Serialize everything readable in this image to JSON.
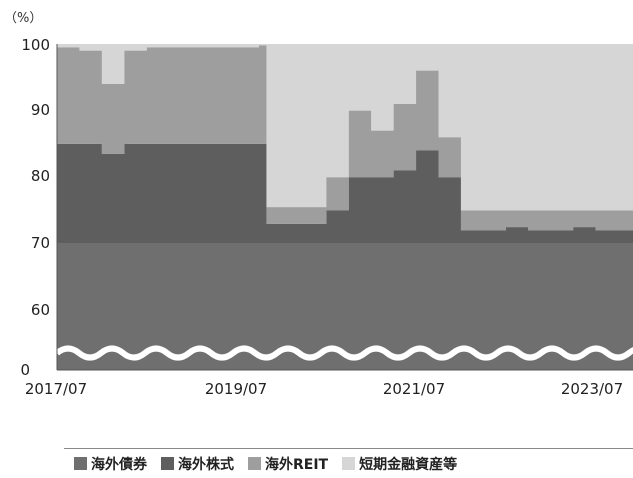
{
  "chart_data": {
    "type": "area",
    "stacked": true,
    "y_unit_label": "（%）",
    "y_ticks": [
      "0",
      "60",
      "70",
      "80",
      "90",
      "100"
    ],
    "y_axis_break": "between 0 and 60",
    "x_ticks": [
      "2017/07",
      "2019/07",
      "2021/07",
      "2023/07"
    ],
    "x_range": [
      "2017/07",
      "2023/12"
    ],
    "ylim": [
      60,
      100
    ],
    "x": [
      "2017/07",
      "2017/10",
      "2018/01",
      "2018/04",
      "2018/07",
      "2018/10",
      "2019/01",
      "2019/04",
      "2019/07",
      "2019/10",
      "2019/11",
      "2020/01",
      "2020/04",
      "2020/07",
      "2020/10",
      "2021/01",
      "2021/04",
      "2021/07",
      "2021/10",
      "2022/01",
      "2022/04",
      "2022/07",
      "2022/10",
      "2023/01",
      "2023/04",
      "2023/07",
      "2023/10",
      "2023/12"
    ],
    "series": [
      {
        "name": "海外債券",
        "color": "#6f6f6f",
        "values": [
          70,
          70,
          70,
          70,
          70,
          70,
          70,
          70,
          70,
          70,
          70,
          70,
          70,
          70,
          70,
          70,
          70,
          70,
          70,
          70,
          70,
          70,
          70,
          70,
          70,
          70,
          70,
          70
        ]
      },
      {
        "name": "海外株式",
        "color": "#5e5e5e",
        "values": [
          15,
          15,
          13.5,
          15,
          15,
          15,
          15,
          15,
          15,
          15,
          3,
          3,
          3,
          5,
          10,
          10,
          11,
          14,
          10,
          2,
          2,
          2.5,
          2,
          2,
          2.5,
          2,
          2,
          2
        ]
      },
      {
        "name": "海外REIT",
        "color": "#9e9e9e",
        "values": [
          14.5,
          14,
          10.5,
          14,
          14.5,
          14.5,
          14.5,
          14.5,
          14.5,
          14.8,
          2.5,
          2.5,
          2.5,
          5,
          10,
          7,
          10,
          12,
          6,
          3,
          3,
          2.5,
          3,
          3,
          2.5,
          3,
          3,
          3
        ]
      },
      {
        "name": "短期金融資産等",
        "color": "#d6d6d6",
        "values": [
          0.5,
          1,
          6,
          1,
          0.5,
          0.5,
          0.5,
          0.5,
          0.5,
          0.2,
          24.5,
          24.5,
          24.5,
          20,
          10,
          13,
          9,
          4,
          14,
          25,
          25,
          25,
          25,
          25,
          25,
          25,
          25,
          25
        ]
      }
    ],
    "legend_position": "bottom"
  }
}
